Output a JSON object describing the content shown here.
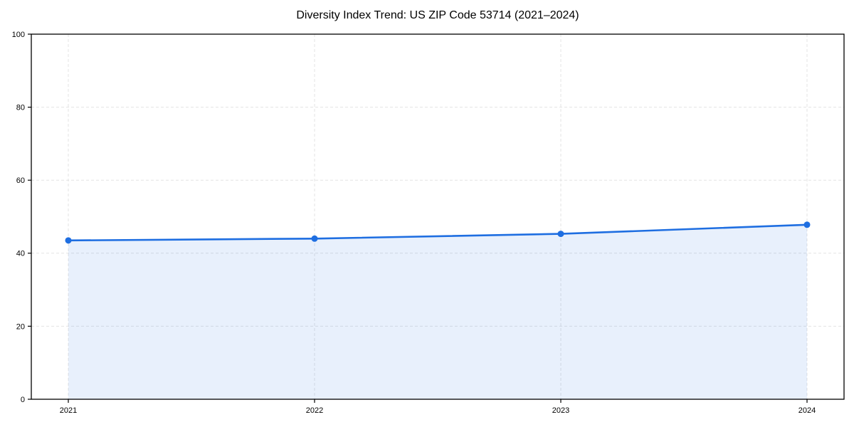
{
  "figure": {
    "title": "Diversity Index Trend: US ZIP Code 53714 (2021–2024)"
  },
  "chart_data": {
    "type": "area",
    "title": "Diversity Index Trend: US ZIP Code 53714 (2021–2024)",
    "categories": [
      "2021",
      "2022",
      "2023",
      "2024"
    ],
    "series": [
      {
        "name": "Diversity Index",
        "values": [
          43.5,
          44.0,
          45.3,
          47.8
        ]
      }
    ],
    "xlabel": "",
    "ylabel": "",
    "ylim": [
      0,
      100
    ],
    "yticks": [
      0,
      20,
      40,
      60,
      80,
      100
    ],
    "grid": true,
    "grid_style": "dashed",
    "legend": "none",
    "marker": "circle",
    "colors": {
      "line": "#1e6ee1",
      "marker": "#1e6ee1",
      "fill": "#1e6ee1",
      "fill_opacity": 0.1,
      "grid": "#e3e3e3",
      "axis": "#000000",
      "text": "#000000",
      "background": "#ffffff"
    }
  }
}
